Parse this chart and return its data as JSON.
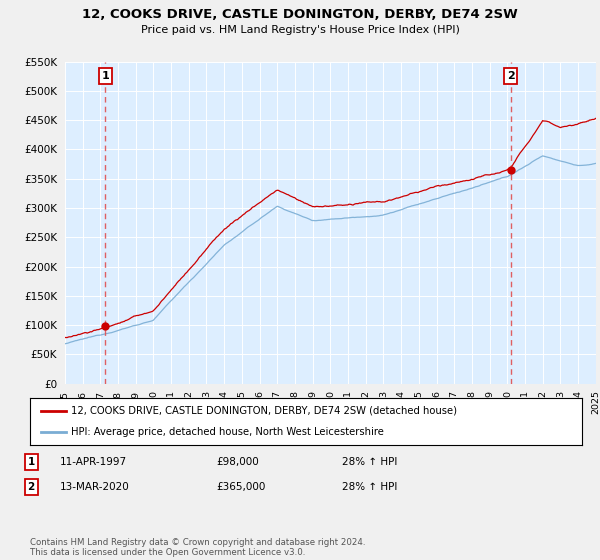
{
  "title": "12, COOKS DRIVE, CASTLE DONINGTON, DERBY, DE74 2SW",
  "subtitle": "Price paid vs. HM Land Registry's House Price Index (HPI)",
  "legend_line1": "12, COOKS DRIVE, CASTLE DONINGTON, DERBY, DE74 2SW (detached house)",
  "legend_line2": "HPI: Average price, detached house, North West Leicestershire",
  "table_row1": [
    "1",
    "11-APR-1997",
    "£98,000",
    "28% ↑ HPI"
  ],
  "table_row2": [
    "2",
    "13-MAR-2020",
    "£365,000",
    "28% ↑ HPI"
  ],
  "footer": "Contains HM Land Registry data © Crown copyright and database right 2024.\nThis data is licensed under the Open Government Licence v3.0.",
  "sale1_year": 1997.28,
  "sale1_price": 98000,
  "sale2_year": 2020.2,
  "sale2_price": 365000,
  "xmin": 1995,
  "xmax": 2025,
  "ymin": 0,
  "ymax": 550000,
  "ytick_step": 50000,
  "red_line_color": "#cc0000",
  "blue_line_color": "#7aadd4",
  "vline_color": "#e05050",
  "background_color": "#f0f0f0",
  "plot_bg_color": "#ddeeff",
  "grid_color": "#ffffff",
  "annotation_box_color": "#cc0000"
}
